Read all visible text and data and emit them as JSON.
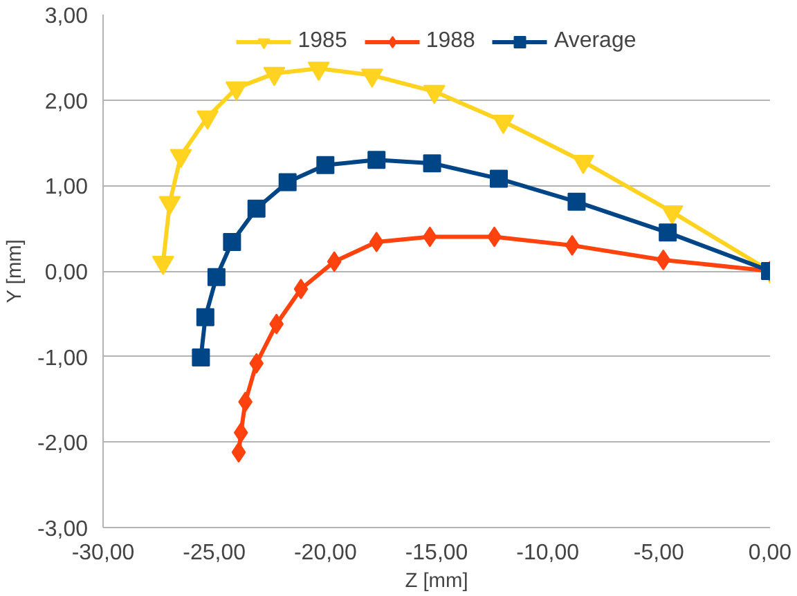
{
  "chart_data": {
    "type": "line",
    "xlabel": "Z [mm]",
    "ylabel": "Y [mm]",
    "xlim": [
      -30,
      0
    ],
    "ylim": [
      -3,
      3
    ],
    "xticks": [
      {
        "value": -30,
        "label": "-30,00"
      },
      {
        "value": -25,
        "label": "-25,00"
      },
      {
        "value": -20,
        "label": "-20,00"
      },
      {
        "value": -15,
        "label": "-15,00"
      },
      {
        "value": -10,
        "label": "-10,00"
      },
      {
        "value": -5,
        "label": "-5,00"
      },
      {
        "value": 0,
        "label": "0,00"
      }
    ],
    "yticks": [
      {
        "value": -3,
        "label": "-3,00"
      },
      {
        "value": -2,
        "label": "-2,00"
      },
      {
        "value": -1,
        "label": "-1,00"
      },
      {
        "value": 0,
        "label": "0,00"
      },
      {
        "value": 1,
        "label": "1,00"
      },
      {
        "value": 2,
        "label": "2,00"
      },
      {
        "value": 3,
        "label": "3,00"
      }
    ],
    "grid": "y",
    "legend": "top",
    "series": [
      {
        "name": "1985",
        "color": "#ffd320",
        "marker": "triangle",
        "x": [
          -27.3,
          -27.0,
          -26.5,
          -25.3,
          -24.0,
          -22.3,
          -20.3,
          -17.9,
          -15.1,
          -12.0,
          -8.4,
          -4.4,
          0
        ],
        "values": [
          0.1,
          0.8,
          1.35,
          1.8,
          2.14,
          2.31,
          2.37,
          2.29,
          2.1,
          1.75,
          1.28,
          0.69,
          0
        ]
      },
      {
        "name": "1988",
        "color": "#ff420e",
        "marker": "diamond",
        "x": [
          -23.9,
          -23.8,
          -23.6,
          -23.1,
          -22.2,
          -21.1,
          -19.6,
          -17.7,
          -15.3,
          -12.4,
          -8.9,
          -4.8,
          0
        ],
        "values": [
          -2.12,
          -1.89,
          -1.53,
          -1.08,
          -0.62,
          -0.21,
          0.11,
          0.34,
          0.4,
          0.4,
          0.3,
          0.13,
          0
        ]
      },
      {
        "name": "Average",
        "color": "#004586",
        "marker": "square",
        "x": [
          -25.6,
          -25.4,
          -24.9,
          -24.2,
          -23.1,
          -21.7,
          -20.0,
          -17.7,
          -15.2,
          -12.2,
          -8.7,
          -4.6,
          0
        ],
        "values": [
          -1.01,
          -0.54,
          -0.07,
          0.34,
          0.73,
          1.04,
          1.24,
          1.3,
          1.26,
          1.08,
          0.81,
          0.45,
          0
        ]
      }
    ]
  }
}
